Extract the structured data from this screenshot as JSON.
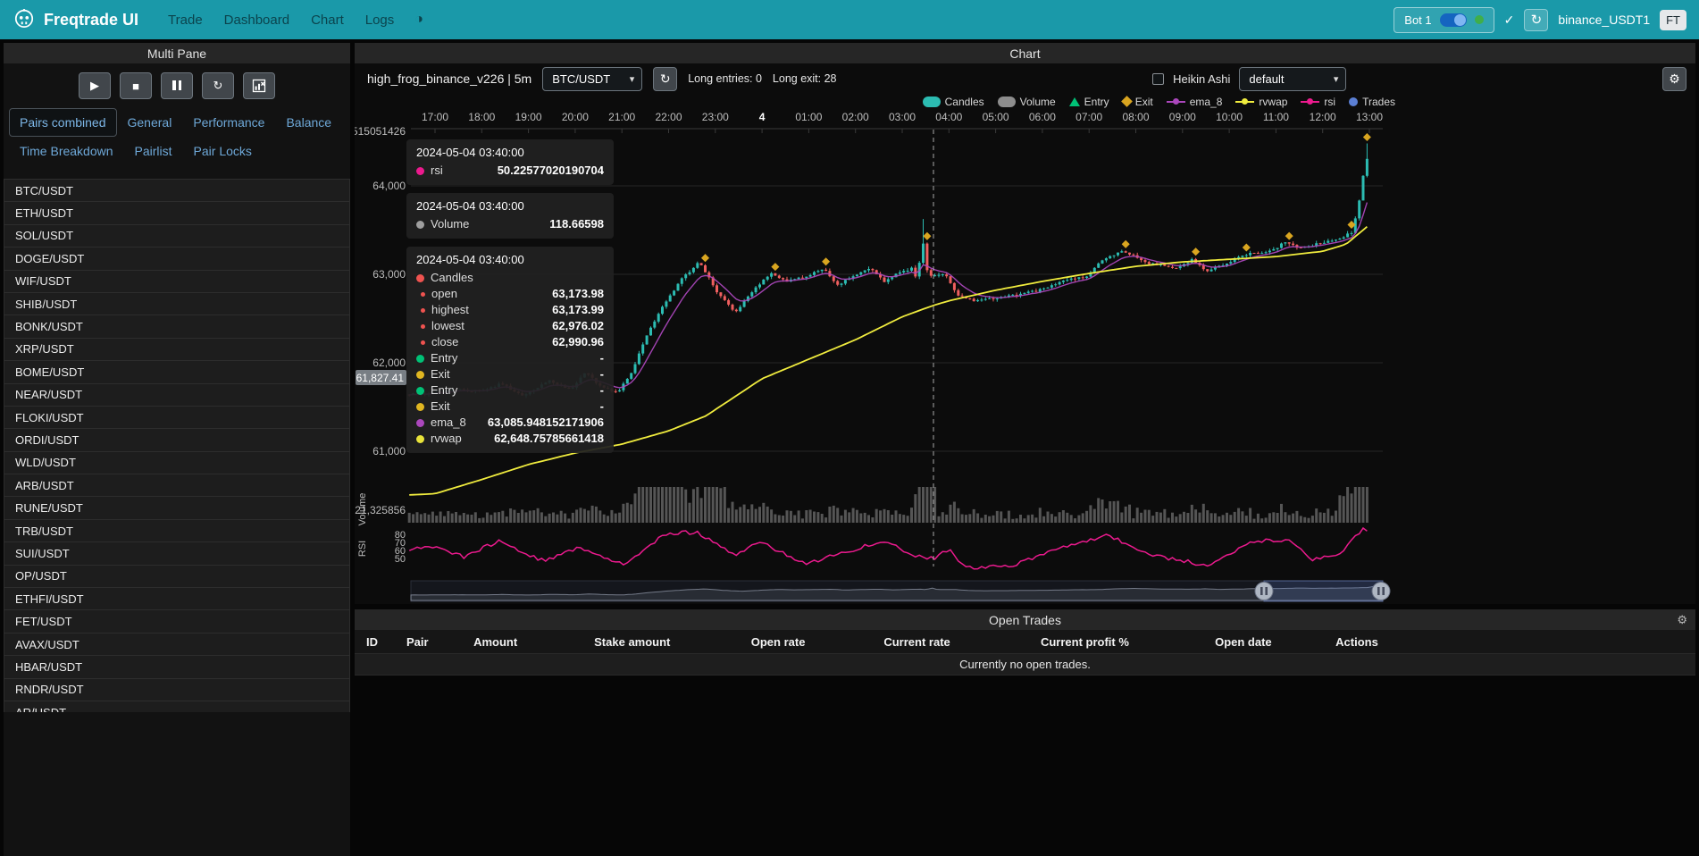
{
  "colors": {
    "navbar_accent": "#1a99a9",
    "link_blue": "#6ea8d8",
    "candle_up": "#2cbcb2",
    "candle_down": "#f05f5f",
    "ema8": "#ab47bc",
    "rvwap": "#f0ec3e",
    "rsi": "#ec1a8e",
    "entry_green": "#00c176",
    "exit_gold": "#d9a520",
    "volume_gray": "#9b9b9b",
    "trades_blue": "#5b7fd4"
  },
  "navbar": {
    "brand": "Freqtrade UI",
    "items": [
      "Trade",
      "Dashboard",
      "Chart",
      "Logs"
    ],
    "bot_label": "Bot 1",
    "bot_name": "binance_USDT1",
    "avatar": "FT"
  },
  "multi_pane": {
    "title": "Multi Pane",
    "tabs": [
      "Pairs combined",
      "General",
      "Performance",
      "Balance",
      "Time Breakdown",
      "Pairlist",
      "Pair Locks"
    ],
    "active_tab": "Pairs combined",
    "pairs": [
      "BTC/USDT",
      "ETH/USDT",
      "SOL/USDT",
      "DOGE/USDT",
      "WIF/USDT",
      "SHIB/USDT",
      "BONK/USDT",
      "XRP/USDT",
      "BOME/USDT",
      "NEAR/USDT",
      "FLOKI/USDT",
      "ORDI/USDT",
      "WLD/USDT",
      "ARB/USDT",
      "RUNE/USDT",
      "TRB/USDT",
      "SUI/USDT",
      "OP/USDT",
      "ETHFI/USDT",
      "FET/USDT",
      "AVAX/USDT",
      "HBAR/USDT",
      "RNDR/USDT",
      "AR/USDT"
    ]
  },
  "chart_panel": {
    "title": "Chart",
    "strategy": "high_frog_binance_v226 | 5m",
    "pair_select": "BTC/USDT",
    "entries_label": "Long entries: 0",
    "exits_label": "Long exit: 28",
    "heikin_ashi_label": "Heikin Ashi",
    "plot_config": "default",
    "price_tag": "61,827.41",
    "legend": [
      {
        "label": "Candles",
        "type": "rect",
        "color": "#2cbcb2"
      },
      {
        "label": "Volume",
        "type": "rect",
        "color": "#8d8d8d"
      },
      {
        "label": "Entry",
        "type": "triangle",
        "color": "#00c176"
      },
      {
        "label": "Exit",
        "type": "diamond",
        "color": "#d9a520"
      },
      {
        "label": "ema_8",
        "type": "line",
        "color": "#ab47bc"
      },
      {
        "label": "rvwap",
        "type": "line",
        "color": "#f0ec3e"
      },
      {
        "label": "rsi",
        "type": "line",
        "color": "#ec1a8e"
      },
      {
        "label": "Trades",
        "type": "circle",
        "color": "#5b7fd4"
      }
    ],
    "tooltip": {
      "sections": [
        {
          "time": "2024-05-04 03:40:00",
          "rows": [
            {
              "dot": "#ec1a8e",
              "label": "rsi",
              "value": "50.22577020190704"
            }
          ]
        },
        {
          "time": "2024-05-04 03:40:00",
          "rows": [
            {
              "dot": "#9e9e9e",
              "label": "Volume",
              "value": "118.66598"
            }
          ]
        },
        {
          "time": "2024-05-04 03:40:00",
          "rows": [
            {
              "dot": "#ef5350",
              "label": "Candles",
              "value": ""
            },
            {
              "dot": "#ef5350",
              "small": true,
              "label": "open",
              "value": "63,173.98"
            },
            {
              "dot": "#ef5350",
              "small": true,
              "label": "highest",
              "value": "63,173.99"
            },
            {
              "dot": "#ef5350",
              "small": true,
              "label": "lowest",
              "value": "62,976.02"
            },
            {
              "dot": "#ef5350",
              "small": true,
              "label": "close",
              "value": "62,990.96"
            },
            {
              "dot": "#00c176",
              "label": "Entry",
              "value": "-"
            },
            {
              "dot": "#e0b621",
              "label": "Exit",
              "value": "-"
            },
            {
              "dot": "#00c176",
              "label": "Entry",
              "value": "-"
            },
            {
              "dot": "#e0b621",
              "label": "Exit",
              "value": "-"
            },
            {
              "dot": "#ab47bc",
              "label": "ema_8",
              "value": "63,085.948152171906"
            },
            {
              "dot": "#e8e33a",
              "label": "rvwap",
              "value": "62,648.75785661418"
            }
          ]
        }
      ]
    }
  },
  "chart_data": {
    "type": "candlestick",
    "x_ticks": [
      "17:00",
      "18:00",
      "19:00",
      "20:00",
      "21:00",
      "22:00",
      "23:00",
      "4",
      "01:00",
      "02:00",
      "03:00",
      "04:00",
      "05:00",
      "06:00",
      "07:00",
      "08:00",
      "09:00",
      "10:00",
      "11:00",
      "12:00",
      "13:00"
    ],
    "y_axis_labels": [
      [
        "515051426",
        33
      ],
      [
        "64,000",
        94
      ],
      [
        "63,000",
        193
      ],
      [
        "62,000",
        292
      ],
      [
        "61,000",
        391
      ],
      [
        "21,325856",
        457
      ]
    ],
    "price_gridlines": [
      64000,
      63000,
      62000,
      61000
    ],
    "rsi_axis_labels": [
      [
        "80",
        484
      ],
      [
        "70",
        493
      ],
      [
        "60",
        502
      ],
      [
        "50",
        511
      ]
    ],
    "volume_axis_label": "Volume",
    "rsi_axis_label": "RSI",
    "crosshair_hour": 10.67,
    "price_anchors": [
      [
        -0.6,
        61640
      ],
      [
        0,
        61650
      ],
      [
        0.5,
        61700
      ],
      [
        1,
        61680
      ],
      [
        1.5,
        61760
      ],
      [
        2,
        61620
      ],
      [
        2.5,
        61800
      ],
      [
        3,
        61700
      ],
      [
        3.3,
        61900
      ],
      [
        3.6,
        61750
      ],
      [
        4,
        61660
      ],
      [
        4.3,
        61900
      ],
      [
        4.6,
        62300
      ],
      [
        5,
        62670
      ],
      [
        5.4,
        62970
      ],
      [
        5.75,
        63140
      ],
      [
        6.1,
        62820
      ],
      [
        6.5,
        62565
      ],
      [
        7,
        62870
      ],
      [
        7.3,
        63020
      ],
      [
        7.6,
        62920
      ],
      [
        8,
        62970
      ],
      [
        8.4,
        63070
      ],
      [
        8.7,
        62870
      ],
      [
        9,
        62970
      ],
      [
        9.4,
        63070
      ],
      [
        9.7,
        62920
      ],
      [
        10,
        63020
      ],
      [
        10.3,
        63070
      ],
      [
        10.42,
        62900
      ],
      [
        10.5,
        63500
      ],
      [
        10.6,
        63080
      ],
      [
        10.67,
        62990
      ],
      [
        11,
        63000
      ],
      [
        11.3,
        62750
      ],
      [
        11.6,
        62700
      ],
      [
        12,
        62720
      ],
      [
        12.5,
        62770
      ],
      [
        13,
        62820
      ],
      [
        13.5,
        62920
      ],
      [
        14,
        62970
      ],
      [
        14.4,
        63170
      ],
      [
        14.8,
        63270
      ],
      [
        15,
        63220
      ],
      [
        15.4,
        63120
      ],
      [
        16,
        63070
      ],
      [
        16.3,
        63170
      ],
      [
        16.6,
        63020
      ],
      [
        17,
        63120
      ],
      [
        17.4,
        63220
      ],
      [
        18,
        63270
      ],
      [
        18.3,
        63370
      ],
      [
        18.6,
        63290
      ],
      [
        19,
        63350
      ],
      [
        19.4,
        63390
      ],
      [
        19.7,
        63470
      ],
      [
        19.85,
        63770
      ],
      [
        20,
        64300
      ]
    ],
    "rvwap_anchors": [
      [
        -0.6,
        60505
      ],
      [
        0,
        60520
      ],
      [
        1,
        60680
      ],
      [
        2,
        60850
      ],
      [
        3,
        60980
      ],
      [
        4,
        61080
      ],
      [
        5,
        61230
      ],
      [
        5.8,
        61400
      ],
      [
        7,
        61820
      ],
      [
        8,
        62040
      ],
      [
        9,
        62260
      ],
      [
        10,
        62520
      ],
      [
        10.67,
        62649
      ],
      [
        11,
        62700
      ],
      [
        11.5,
        62760
      ],
      [
        12,
        62820
      ],
      [
        13,
        62920
      ],
      [
        14,
        63010
      ],
      [
        15,
        63090
      ],
      [
        16,
        63140
      ],
      [
        17,
        63170
      ],
      [
        18,
        63200
      ],
      [
        19,
        63260
      ],
      [
        19.5,
        63340
      ],
      [
        20,
        63560
      ]
    ],
    "rsi_anchors": [
      [
        -0.6,
        60
      ],
      [
        0,
        66
      ],
      [
        0.6,
        52
      ],
      [
        1.4,
        72
      ],
      [
        2.35,
        46
      ],
      [
        3.1,
        64
      ],
      [
        4.1,
        42
      ],
      [
        4.9,
        80
      ],
      [
        5.6,
        83
      ],
      [
        6.4,
        55
      ],
      [
        7,
        70
      ],
      [
        7.9,
        43
      ],
      [
        8.85,
        58
      ],
      [
        9.6,
        73
      ],
      [
        10.2,
        55
      ],
      [
        10.67,
        50
      ],
      [
        11,
        62
      ],
      [
        11.35,
        39
      ],
      [
        12.3,
        40
      ],
      [
        13.3,
        62
      ],
      [
        14.4,
        78
      ],
      [
        15.5,
        52
      ],
      [
        16.6,
        41
      ],
      [
        17.4,
        70
      ],
      [
        18.3,
        74
      ],
      [
        18.8,
        48
      ],
      [
        19.4,
        58
      ],
      [
        19.9,
        88
      ],
      [
        20,
        85
      ]
    ],
    "wick_spikes": [
      {
        "h": 10.47,
        "high": 63625
      },
      {
        "h": 19.97,
        "high": 64480
      }
    ],
    "volume_spikes": [
      [
        4.3,
        6.2,
        2.6
      ],
      [
        10.35,
        10.7,
        4.5
      ],
      [
        14.2,
        14.9,
        1.9
      ],
      [
        19.3,
        20.1,
        3.2
      ]
    ],
    "exit_hours": [
      5.75,
      7.3,
      8.4,
      10.5,
      14.8,
      16.3,
      17.4,
      18.3,
      19.6,
      19.97
    ]
  },
  "open_trades": {
    "title": "Open Trades",
    "columns": [
      "ID",
      "Pair",
      "Amount",
      "Stake amount",
      "Open rate",
      "Current rate",
      "Current profit %",
      "Open date",
      "Actions"
    ],
    "empty_message": "Currently no open trades."
  }
}
